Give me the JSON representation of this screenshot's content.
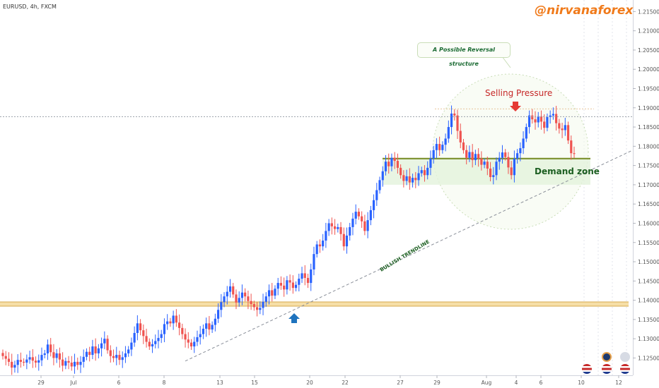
{
  "chart_data": {
    "type": "candlestick",
    "symbol": "EURUSD, 4h, FXCM",
    "brand": "@nirvanaforex",
    "y_ticks": [
      "1.21500",
      "1.21000",
      "1.20500",
      "1.20000",
      "1.19500",
      "1.19000",
      "1.18500",
      "1.18000",
      "1.17500",
      "1.17000",
      "1.16500",
      "1.16000",
      "1.15500",
      "1.15000",
      "1.14500",
      "1.14000",
      "1.13500",
      "1.13000",
      "1.12500"
    ],
    "x_ticks": [
      "29",
      "Jul",
      "6",
      "8",
      "13",
      "15",
      "20",
      "22",
      "27",
      "29",
      "Aug",
      "4",
      "6",
      "10",
      "12"
    ],
    "ylim": [
      1.1205,
      1.218
    ],
    "annotations": {
      "structure": "A Possible Reversal structure",
      "selling": "Selling Pressure",
      "demand": "Demand zone",
      "trendline": "BULLISH TRENDLINE"
    },
    "levels": {
      "support": 1.139,
      "resistance": 1.1877,
      "demand_top": 1.1768,
      "demand_bottom": 1.17
    },
    "trendline": [
      [
        0,
        1.1242
      ],
      [
        220,
        1.179
      ]
    ],
    "closes": [
      1.1255,
      1.1248,
      1.124,
      1.1225,
      1.1232,
      1.1245,
      1.124,
      1.1238,
      1.1246,
      1.1252,
      1.1243,
      1.1238,
      1.1244,
      1.1258,
      1.1262,
      1.1285,
      1.1265,
      1.125,
      1.1262,
      1.1246,
      1.123,
      1.1242,
      1.1238,
      1.1228,
      1.124,
      1.1232,
      1.124,
      1.1253,
      1.1266,
      1.1258,
      1.128,
      1.1262,
      1.1275,
      1.1288,
      1.13,
      1.127,
      1.1255,
      1.125,
      1.1258,
      1.1245,
      1.1252,
      1.1262,
      1.1272,
      1.129,
      1.1315,
      1.134,
      1.1322,
      1.1307,
      1.1292,
      1.128,
      1.1286,
      1.1294,
      1.1302,
      1.1312,
      1.1338,
      1.1345,
      1.134,
      1.136,
      1.1342,
      1.1328,
      1.1312,
      1.1298,
      1.129,
      1.128,
      1.1292,
      1.1304,
      1.1312,
      1.1326,
      1.134,
      1.1324,
      1.1336,
      1.1352,
      1.1375,
      1.1395,
      1.141,
      1.1422,
      1.1436,
      1.1415,
      1.1394,
      1.1406,
      1.142,
      1.141,
      1.1398,
      1.139,
      1.1382,
      1.1375,
      1.138,
      1.1396,
      1.141,
      1.1426,
      1.1412,
      1.143,
      1.1445,
      1.1438,
      1.1428,
      1.1452,
      1.1446,
      1.1432,
      1.144,
      1.1456,
      1.147,
      1.1458,
      1.1445,
      1.148,
      1.152,
      1.1545,
      1.154,
      1.1555,
      1.158,
      1.16,
      1.1592,
      1.1585,
      1.159,
      1.1572,
      1.154,
      1.1568,
      1.159,
      1.1612,
      1.163,
      1.1618,
      1.1605,
      1.158,
      1.1608,
      1.1634,
      1.166,
      1.1686,
      1.1712,
      1.1735,
      1.176,
      1.1748,
      1.177,
      1.1762,
      1.1744,
      1.1725,
      1.171,
      1.1722,
      1.1706,
      1.1718,
      1.1712,
      1.173,
      1.1738,
      1.1725,
      1.1744,
      1.1768,
      1.179,
      1.1806,
      1.179,
      1.1804,
      1.182,
      1.185,
      1.1885,
      1.188,
      1.184,
      1.181,
      1.179,
      1.177,
      1.1785,
      1.1764,
      1.178,
      1.1768,
      1.1752,
      1.176,
      1.1742,
      1.172,
      1.1725,
      1.176,
      1.177,
      1.1784,
      1.1772,
      1.1745,
      1.1725,
      1.1768,
      1.1782,
      1.1795,
      1.182,
      1.185,
      1.188,
      1.187,
      1.1862,
      1.1878,
      1.1864,
      1.1848,
      1.1876,
      1.188,
      1.1884,
      1.186,
      1.1846,
      1.1842,
      1.1855,
      1.1815,
      1.1782,
      1.178
    ]
  }
}
